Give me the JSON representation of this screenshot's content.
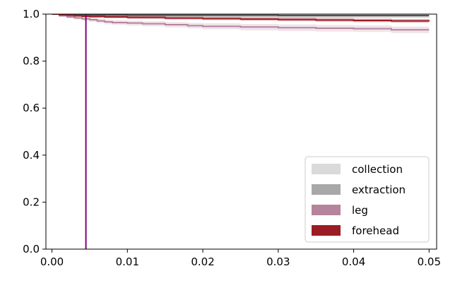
{
  "chart_data": {
    "type": "line",
    "title": "",
    "xlabel": "",
    "ylabel": "",
    "xlim": [
      -0.0008,
      0.051
    ],
    "ylim": [
      0.0,
      1.0
    ],
    "x_ticks": [
      0.0,
      0.01,
      0.02,
      0.03,
      0.04,
      0.05
    ],
    "x_tick_labels": [
      "0.00",
      "0.01",
      "0.02",
      "0.03",
      "0.04",
      "0.05"
    ],
    "y_ticks": [
      0.0,
      0.2,
      0.4,
      0.6,
      0.8,
      1.0
    ],
    "y_tick_labels": [
      "0.0",
      "0.2",
      "0.4",
      "0.6",
      "0.8",
      "1.0"
    ],
    "grid": false,
    "legend_position": "lower-right",
    "vertical_line": {
      "x": 0.0045,
      "color": "#800080"
    },
    "series": [
      {
        "name": "collection",
        "color": "#dadada",
        "band_color": "#dadada",
        "x": [
          0.0,
          0.001,
          0.003,
          0.005,
          0.01,
          0.02,
          0.03,
          0.04,
          0.05
        ],
        "y": [
          1.0,
          0.999,
          0.999,
          0.998,
          0.998,
          0.998,
          0.998,
          0.998,
          0.998
        ],
        "y_lower": [
          1.0,
          0.996,
          0.994,
          0.993,
          0.992,
          0.992,
          0.991,
          0.991,
          0.991
        ],
        "y_upper": [
          1.0,
          1.0,
          1.0,
          1.0,
          1.0,
          1.0,
          1.0,
          1.0,
          1.0
        ]
      },
      {
        "name": "extraction",
        "color": "#555555",
        "band_color": "#a8a8a8",
        "x": [
          0.0,
          0.001,
          0.003,
          0.005,
          0.01,
          0.02,
          0.03,
          0.04,
          0.05
        ],
        "y": [
          1.0,
          0.998,
          0.997,
          0.996,
          0.995,
          0.995,
          0.994,
          0.994,
          0.994
        ],
        "y_lower": [
          1.0,
          0.994,
          0.991,
          0.989,
          0.987,
          0.986,
          0.985,
          0.985,
          0.984
        ],
        "y_upper": [
          1.0,
          1.0,
          1.0,
          1.0,
          1.0,
          1.0,
          1.0,
          1.0,
          1.0
        ]
      },
      {
        "name": "leg",
        "color": "#b5849c",
        "band_color": "#e4cdd9",
        "x": [
          0.0,
          0.001,
          0.002,
          0.003,
          0.004,
          0.005,
          0.006,
          0.007,
          0.008,
          0.01,
          0.012,
          0.015,
          0.018,
          0.02,
          0.025,
          0.03,
          0.035,
          0.04,
          0.044,
          0.045,
          0.05
        ],
        "y": [
          1.0,
          0.993,
          0.988,
          0.984,
          0.98,
          0.976,
          0.971,
          0.967,
          0.964,
          0.962,
          0.959,
          0.955,
          0.951,
          0.948,
          0.945,
          0.942,
          0.94,
          0.938,
          0.938,
          0.933,
          0.933
        ],
        "y_lower": [
          1.0,
          0.988,
          0.982,
          0.977,
          0.972,
          0.967,
          0.962,
          0.957,
          0.954,
          0.951,
          0.948,
          0.943,
          0.939,
          0.935,
          0.931,
          0.928,
          0.926,
          0.924,
          0.924,
          0.919,
          0.918
        ],
        "y_upper": [
          1.0,
          0.997,
          0.994,
          0.991,
          0.988,
          0.985,
          0.981,
          0.977,
          0.974,
          0.972,
          0.97,
          0.966,
          0.963,
          0.961,
          0.958,
          0.956,
          0.954,
          0.952,
          0.952,
          0.947,
          0.947
        ]
      },
      {
        "name": "forehead",
        "color": "#9b1c22",
        "band_color": "#c97b7f",
        "x": [
          0.0,
          0.001,
          0.002,
          0.003,
          0.004,
          0.005,
          0.007,
          0.01,
          0.015,
          0.02,
          0.025,
          0.03,
          0.035,
          0.04,
          0.045,
          0.05
        ],
        "y": [
          1.0,
          0.997,
          0.995,
          0.993,
          0.991,
          0.99,
          0.988,
          0.986,
          0.983,
          0.981,
          0.979,
          0.977,
          0.975,
          0.973,
          0.971,
          0.97
        ],
        "y_lower": [
          1.0,
          0.994,
          0.991,
          0.989,
          0.987,
          0.985,
          0.983,
          0.98,
          0.977,
          0.975,
          0.972,
          0.97,
          0.968,
          0.966,
          0.964,
          0.962
        ],
        "y_upper": [
          1.0,
          0.999,
          0.998,
          0.997,
          0.996,
          0.995,
          0.994,
          0.992,
          0.99,
          0.988,
          0.986,
          0.985,
          0.983,
          0.981,
          0.979,
          0.978
        ]
      }
    ]
  }
}
